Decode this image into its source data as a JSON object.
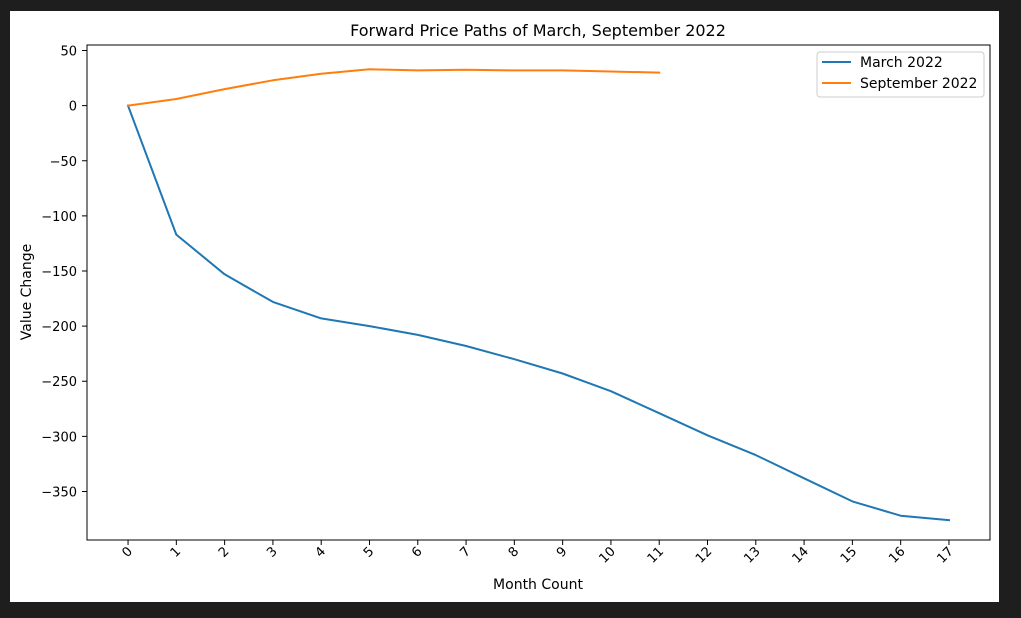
{
  "chart_data": {
    "type": "line",
    "title": "Forward Price Paths of March, September 2022",
    "xlabel": "Month Count",
    "ylabel": "Value Change",
    "xlim": [
      -0.85,
      17.85
    ],
    "ylim": [
      -394,
      55
    ],
    "x_ticks": [
      0,
      1,
      2,
      3,
      4,
      5,
      6,
      7,
      8,
      9,
      10,
      11,
      12,
      13,
      14,
      15,
      16,
      17
    ],
    "x_tick_labels": [
      "0",
      "1",
      "2",
      "3",
      "4",
      "5",
      "6",
      "7",
      "8",
      "9",
      "10",
      "11",
      "12",
      "13",
      "14",
      "15",
      "16",
      "17"
    ],
    "x_tick_rotation_deg": 45,
    "y_ticks": [
      50,
      0,
      -50,
      -100,
      -150,
      -200,
      -250,
      -300,
      -350
    ],
    "y_tick_labels": [
      "50",
      "0",
      "−50",
      "−100",
      "−150",
      "−200",
      "−250",
      "−300",
      "−350"
    ],
    "grid": false,
    "legend_position": "top-right",
    "series": [
      {
        "name": "March 2022",
        "color": "#1f77b4",
        "x": [
          0,
          1,
          2,
          3,
          4,
          5,
          6,
          7,
          8,
          9,
          10,
          11,
          12,
          13,
          14,
          15,
          16,
          17
        ],
        "values": [
          0,
          -117,
          -153,
          -178,
          -193,
          -200,
          -208,
          -218,
          -230,
          -243,
          -259,
          -279,
          -299,
          -317,
          -338,
          -359,
          -372,
          -376
        ]
      },
      {
        "name": "September 2022",
        "color": "#ff7f0e",
        "x": [
          0,
          1,
          2,
          3,
          4,
          5,
          6,
          7,
          8,
          9,
          10,
          11
        ],
        "values": [
          0,
          6,
          15,
          23,
          29,
          33,
          32,
          32.5,
          32,
          32,
          31,
          30
        ]
      }
    ]
  }
}
